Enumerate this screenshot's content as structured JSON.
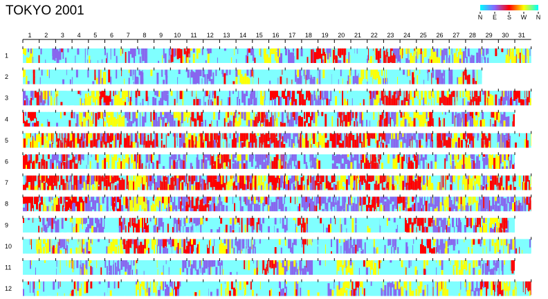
{
  "chart_data": {
    "type": "heatmap",
    "title": "TOKYO  2001",
    "xlabel": "",
    "ylabel": "",
    "x_categories": [
      "1",
      "2",
      "3",
      "4",
      "5",
      "6",
      "7",
      "8",
      "9",
      "10",
      "11",
      "12",
      "13",
      "14",
      "15",
      "16",
      "17",
      "18",
      "19",
      "20",
      "21",
      "22",
      "23",
      "24",
      "25",
      "26",
      "27",
      "28",
      "29",
      "30",
      "31"
    ],
    "y_categories": [
      "1",
      "2",
      "3",
      "4",
      "5",
      "6",
      "7",
      "8",
      "9",
      "10",
      "11",
      "12"
    ],
    "days_in_month": [
      31,
      28,
      31,
      30,
      31,
      30,
      31,
      31,
      30,
      31,
      30,
      31
    ],
    "legend": {
      "placement": "top-right",
      "labels": [
        "N",
        "E",
        "S",
        "W",
        "N"
      ],
      "colors": [
        "#00ffff",
        "#8866ff",
        "#ff0000",
        "#ffff00",
        "#00ffff"
      ]
    },
    "colors": {
      "N": "#80ffff",
      "E": "#8866ee",
      "S": "#ff0000",
      "W": "#ffff00"
    },
    "grid": false,
    "month_profiles": [
      {
        "N": 0.42,
        "E": 0.32,
        "S": 0.1,
        "W": 0.16
      },
      {
        "N": 0.5,
        "E": 0.32,
        "S": 0.08,
        "W": 0.1
      },
      {
        "N": 0.4,
        "E": 0.24,
        "S": 0.2,
        "W": 0.16
      },
      {
        "N": 0.25,
        "E": 0.28,
        "S": 0.27,
        "W": 0.2
      },
      {
        "N": 0.12,
        "E": 0.22,
        "S": 0.44,
        "W": 0.22
      },
      {
        "N": 0.2,
        "E": 0.3,
        "S": 0.3,
        "W": 0.2
      },
      {
        "N": 0.04,
        "E": 0.12,
        "S": 0.52,
        "W": 0.32
      },
      {
        "N": 0.14,
        "E": 0.46,
        "S": 0.26,
        "W": 0.14
      },
      {
        "N": 0.4,
        "E": 0.3,
        "S": 0.16,
        "W": 0.14
      },
      {
        "N": 0.42,
        "E": 0.26,
        "S": 0.16,
        "W": 0.16
      },
      {
        "N": 0.55,
        "E": 0.2,
        "S": 0.08,
        "W": 0.17
      },
      {
        "N": 0.55,
        "E": 0.12,
        "S": 0.08,
        "W": 0.25
      }
    ]
  }
}
